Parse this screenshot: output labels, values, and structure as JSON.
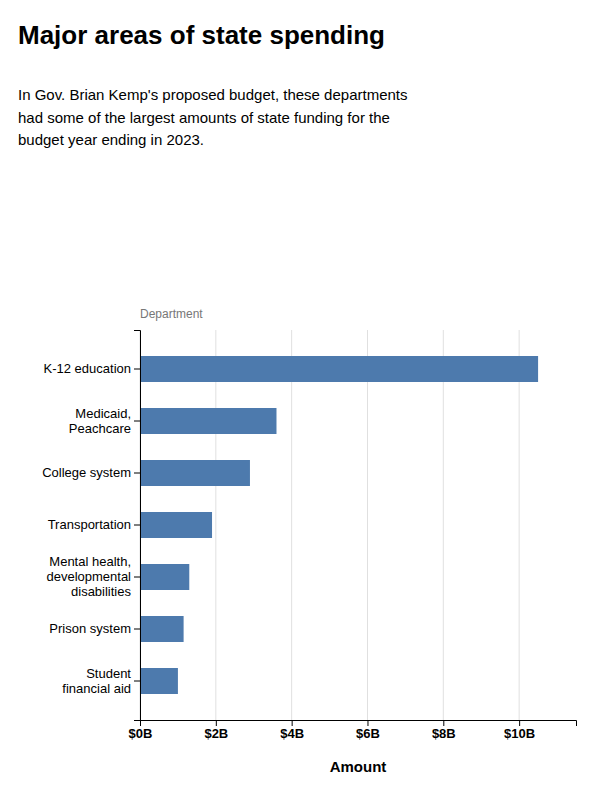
{
  "chart_data": {
    "type": "bar",
    "orientation": "horizontal",
    "title": "Major areas of state spending",
    "subtitle": "In Gov. Brian Kemp's proposed budget, these departments\nhad some of the largest amounts of state funding for the\nbudget year ending in 2023.",
    "x_label": "Amount",
    "y_label": "Department",
    "categories": [
      "Student\nfinancial aid",
      "Prison system",
      "Mental health,\ndevelopmental\ndisabilities",
      "Transportation",
      "College system",
      "Medicaid,\nPeachcare",
      "K-12 education"
    ],
    "values": [
      1.0,
      1.15,
      1.3,
      1.9,
      2.9,
      3.6,
      10.5
    ],
    "color": "#4d7aad",
    "xlim": [
      0,
      11.5
    ],
    "xticks": [
      {
        "value": 0,
        "label": "$0B"
      },
      {
        "value": 2,
        "label": "$2B"
      },
      {
        "value": 4,
        "label": "$4B"
      },
      {
        "value": 6,
        "label": "$6B"
      },
      {
        "value": 8,
        "label": "$8B"
      },
      {
        "value": 10,
        "label": "$10B"
      }
    ],
    "grid": true
  }
}
